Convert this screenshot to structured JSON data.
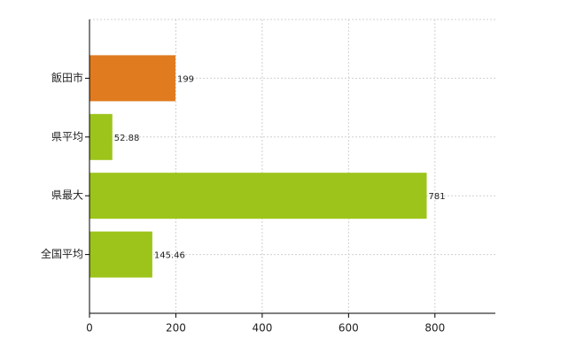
{
  "chart_data": {
    "type": "hbar",
    "categories": [
      "飯田市",
      "県平均",
      "県最大",
      "全国平均"
    ],
    "values": [
      199,
      52.88,
      781,
      145.46
    ],
    "colors": [
      "#e07b20",
      "#9dc41a",
      "#9dc41a",
      "#9dc41a"
    ],
    "xlim": [
      0,
      940
    ],
    "xticks": [
      0,
      200,
      400,
      600,
      800
    ],
    "grid": true
  }
}
